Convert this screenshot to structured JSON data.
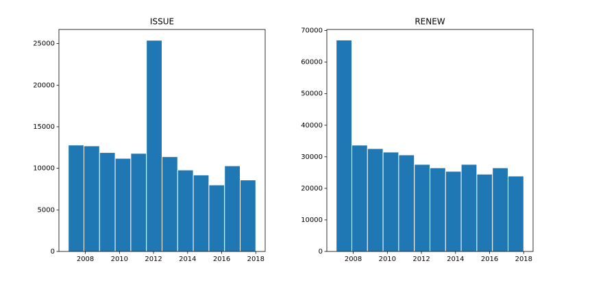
{
  "chart_data": [
    {
      "type": "histogram",
      "title": "ISSUE",
      "color": "#1f77b4",
      "bins": [
        2007,
        2007.9167,
        2008.8333,
        2009.75,
        2010.6667,
        2011.5833,
        2012.5,
        2013.4167,
        2014.3333,
        2015.25,
        2016.1667,
        2017.0833,
        2018
      ],
      "values": [
        12800,
        12700,
        11900,
        11200,
        11800,
        25400,
        11400,
        9800,
        9200,
        8000,
        10300,
        8600
      ],
      "xlim": [
        2006.45,
        2018.55
      ],
      "xticks": [
        2008,
        2010,
        2012,
        2014,
        2016,
        2018
      ],
      "ylim": [
        0,
        26700
      ],
      "yticks": [
        0,
        5000,
        10000,
        15000,
        20000,
        25000
      ],
      "grid": false
    },
    {
      "type": "histogram",
      "title": "RENEW",
      "color": "#1f77b4",
      "bins": [
        2007,
        2007.9167,
        2008.8333,
        2009.75,
        2010.6667,
        2011.5833,
        2012.5,
        2013.4167,
        2014.3333,
        2015.25,
        2016.1667,
        2017.0833,
        2018
      ],
      "values": [
        67000,
        33700,
        32600,
        31500,
        30600,
        27600,
        26500,
        25400,
        27600,
        24500,
        26500,
        23900
      ],
      "xlim": [
        2006.45,
        2018.55
      ],
      "xticks": [
        2008,
        2010,
        2012,
        2014,
        2016,
        2018
      ],
      "ylim": [
        0,
        70350
      ],
      "yticks": [
        0,
        10000,
        20000,
        30000,
        40000,
        50000,
        60000,
        70000
      ],
      "grid": false
    }
  ]
}
